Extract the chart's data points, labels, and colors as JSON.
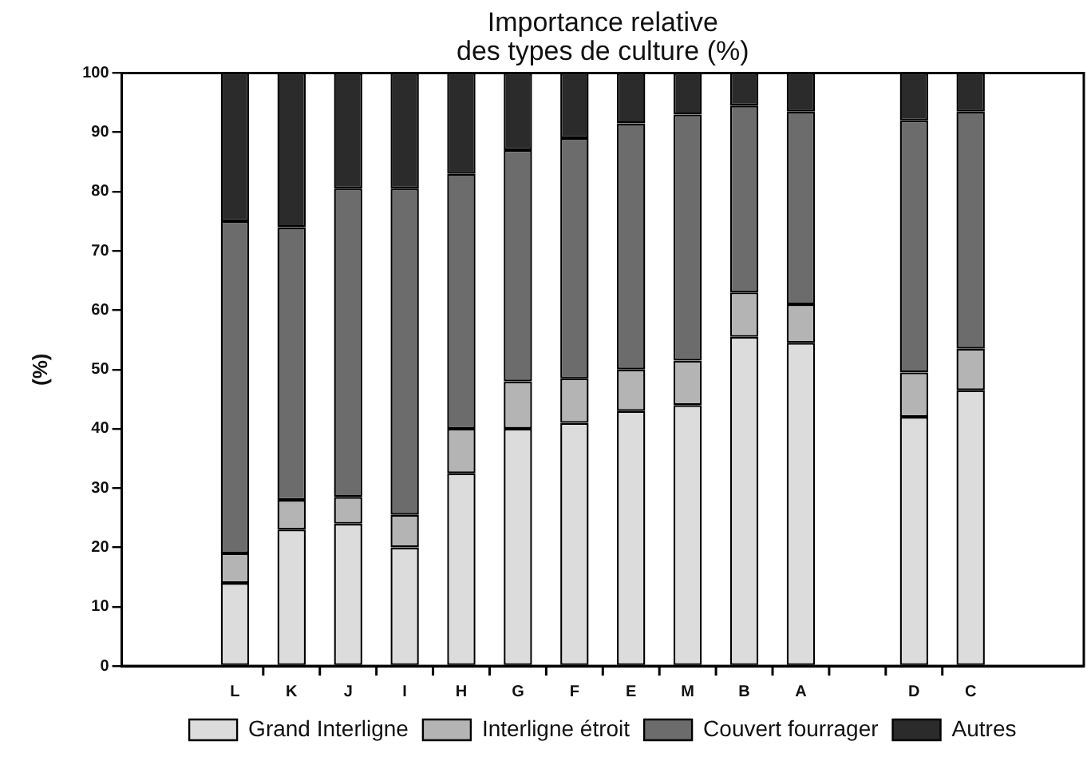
{
  "chart_data": {
    "type": "bar",
    "title": "Importance relative\ndes types de culture (%)",
    "ylabel": "(%)",
    "categories": [
      null,
      null,
      "L",
      "K",
      "J",
      "I",
      "H",
      "G",
      "F",
      "E",
      "M",
      "B",
      "A",
      null,
      "D",
      "C",
      null,
      null
    ],
    "stacked": true,
    "series": [
      {
        "name": "Grand Interligne",
        "color": "#dcdcdc",
        "values": [
          null,
          null,
          14,
          23,
          24,
          20,
          32.5,
          40,
          41,
          43,
          44,
          55.5,
          54.5,
          null,
          42,
          46.5,
          null,
          null
        ]
      },
      {
        "name": "Interligne étroit",
        "color": "#b4b4b4",
        "values": [
          null,
          null,
          5,
          5,
          4.5,
          5.5,
          7.5,
          8,
          7.5,
          7,
          7.5,
          7.5,
          6.5,
          null,
          7.5,
          7,
          null,
          null
        ]
      },
      {
        "name": "Couvert fourrager",
        "color": "#6c6c6c",
        "values": [
          null,
          null,
          56,
          46,
          52,
          55,
          43,
          39,
          40.5,
          41.5,
          41.5,
          31.5,
          32.5,
          null,
          42.5,
          40,
          null,
          null
        ]
      },
      {
        "name": "Autres",
        "color": "#2b2b2b",
        "values": [
          null,
          null,
          25,
          26,
          19.5,
          19.5,
          17,
          13,
          11,
          8.5,
          7,
          5.5,
          6.5,
          null,
          8,
          6.5,
          null,
          null
        ]
      }
    ],
    "ylim": [
      0,
      100
    ],
    "yticks": [
      0,
      10,
      20,
      30,
      40,
      50,
      60,
      70,
      80,
      90,
      100
    ],
    "grid": false,
    "legend": "bottom"
  }
}
